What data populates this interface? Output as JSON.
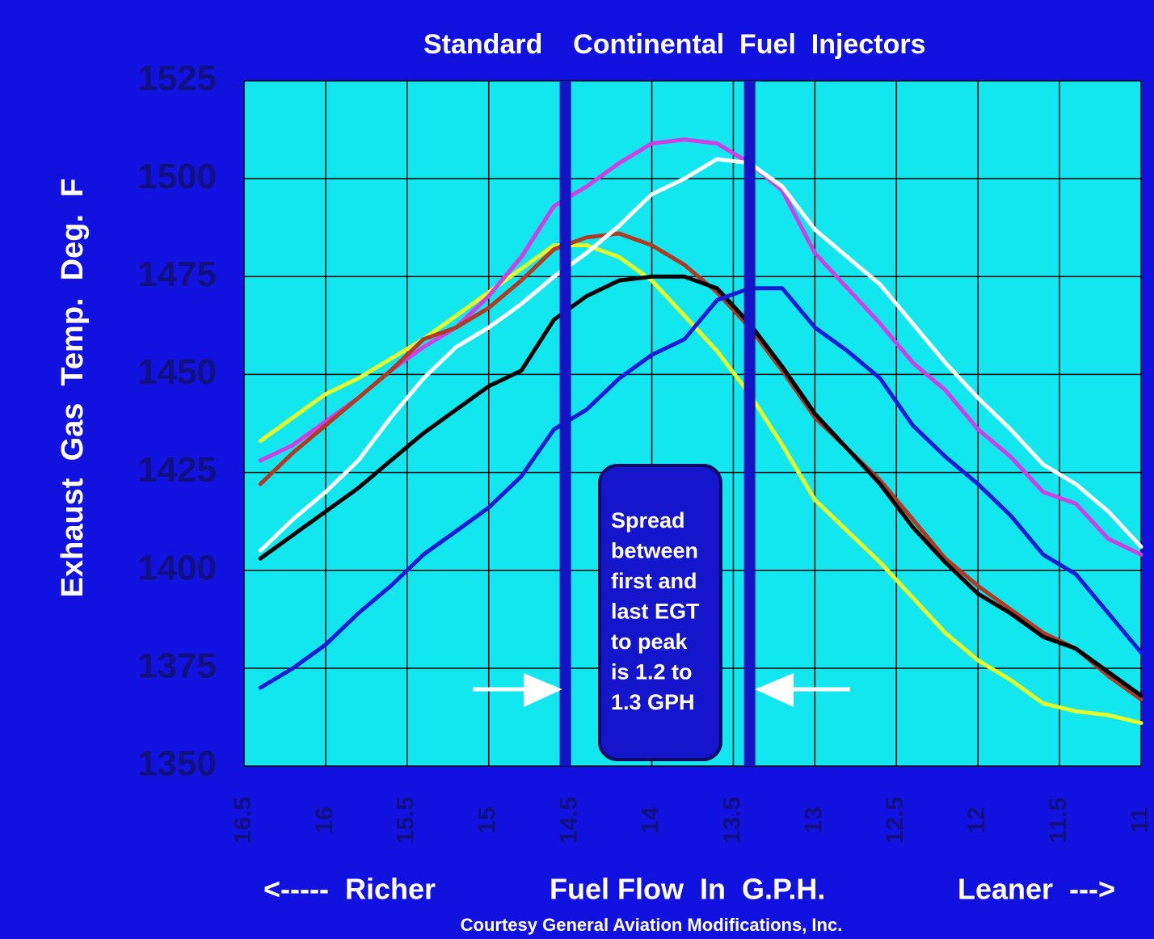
{
  "chart_data": {
    "type": "line",
    "title": "Standard    Continental  Fuel  Injectors",
    "y_label": "Exhaust  Gas  Temp.  Deg.  F",
    "x_label": "Fuel Flow  In  G.P.H.",
    "x_left_label": "<-----  Richer",
    "x_right_label": "Leaner  --->",
    "credit": "Courtesy General Aviation Modifications, Inc.",
    "annotation": [
      "Spread",
      "between",
      "first and",
      "last EGT",
      "to peak",
      "is 1.2 to",
      "1.3 GPH"
    ],
    "reference_lines": [
      14.53,
      13.4
    ],
    "x": [
      16.4,
      16.2,
      16.0,
      15.8,
      15.6,
      15.4,
      15.2,
      15.0,
      14.8,
      14.6,
      14.4,
      14.2,
      14.0,
      13.8,
      13.6,
      13.4,
      13.2,
      13.0,
      12.8,
      12.6,
      12.4,
      12.2,
      12.0,
      11.8,
      11.6,
      11.4,
      11.2,
      11.0
    ],
    "series": [
      {
        "color": "#e4ff2a",
        "values": [
          1433,
          1439,
          1445,
          1449,
          1454,
          1459,
          1465,
          1471,
          1477,
          1483,
          1483,
          1480,
          1474,
          1465,
          1456,
          1445,
          1432,
          1418,
          1410,
          1402,
          1393,
          1384,
          1377,
          1372,
          1366,
          1364,
          1363,
          1361
        ]
      },
      {
        "color": "#d23ee6",
        "values": [
          1428,
          1432,
          1438,
          1444,
          1451,
          1457,
          1462,
          1470,
          1480,
          1493,
          1498,
          1504,
          1509,
          1510,
          1509,
          1504,
          1497,
          1481,
          1472,
          1463,
          1453,
          1446,
          1436,
          1429,
          1420,
          1417,
          1408,
          1404
        ]
      },
      {
        "color": "#b23a22",
        "values": [
          1422,
          1430,
          1437,
          1444,
          1451,
          1459,
          1462,
          1467,
          1474,
          1482,
          1485,
          1486,
          1483,
          1478,
          1471,
          1462,
          1451,
          1439,
          1431,
          1423,
          1413,
          1403,
          1396,
          1390,
          1384,
          1380,
          1373,
          1367
        ]
      },
      {
        "color": "#ffffff",
        "values": [
          1405,
          1413,
          1420,
          1428,
          1439,
          1449,
          1457,
          1462,
          1468,
          1475,
          1481,
          1488,
          1496,
          1500,
          1505,
          1504,
          1498,
          1487,
          1480,
          1473,
          1463,
          1453,
          1444,
          1436,
          1427,
          1422,
          1415,
          1406
        ]
      },
      {
        "color": "#000000",
        "values": [
          1403,
          1409,
          1415,
          1421,
          1428,
          1435,
          1441,
          1447,
          1451,
          1464,
          1470,
          1474,
          1475,
          1475,
          1472,
          1463,
          1452,
          1440,
          1431,
          1422,
          1411,
          1402,
          1394,
          1389,
          1383,
          1380,
          1374,
          1368
        ]
      },
      {
        "color": "#1a1ad8",
        "values": [
          1370,
          1375,
          1381,
          1389,
          1396,
          1404,
          1410,
          1416,
          1424,
          1436,
          1441,
          1449,
          1455,
          1459,
          1469,
          1472,
          1472,
          1462,
          1456,
          1449,
          1437,
          1429,
          1422,
          1414,
          1404,
          1399,
          1389,
          1379
        ]
      }
    ],
    "xlim": [
      16.5,
      11
    ],
    "xticks": [
      16.5,
      16,
      15.5,
      15,
      14.5,
      14,
      13.5,
      13,
      12.5,
      12,
      11.5,
      11
    ],
    "ylim": [
      1350,
      1525
    ],
    "yticks": [
      1350,
      1375,
      1400,
      1425,
      1450,
      1475,
      1500,
      1525
    ],
    "grid": true
  }
}
